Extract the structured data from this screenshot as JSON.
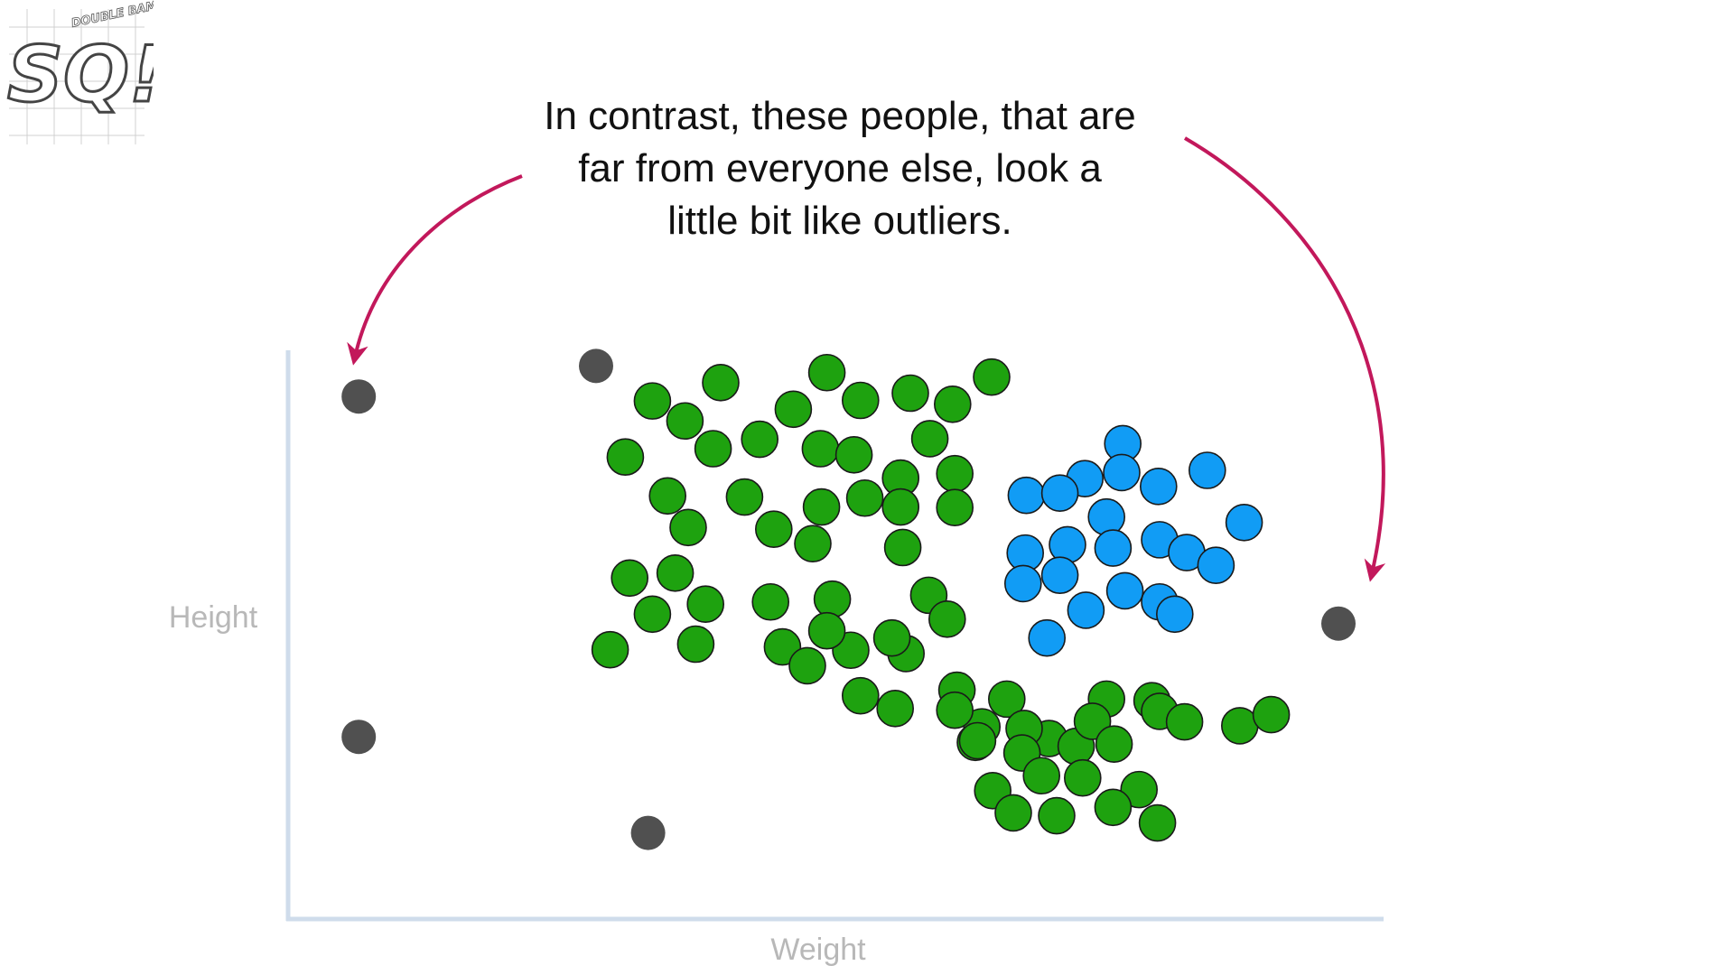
{
  "logo": {
    "letters": "SQ!",
    "tagline": "DOUBLE BAM!!!"
  },
  "caption": {
    "lines": [
      "In contrast, these people, that are",
      "far from everyone else, look a",
      "little bit like outliers."
    ]
  },
  "colors": {
    "axis": "#cfdceb",
    "axis_label": "#b8b8b8",
    "arrow": "#c2185b",
    "green": "#1ea20f",
    "blue": "#119cf5",
    "outlier": "#505050",
    "caption_text": "#111111"
  },
  "chart_data": {
    "type": "scatter",
    "xlabel": "Weight",
    "ylabel": "Height",
    "xlim": [
      0,
      100
    ],
    "ylim": [
      0,
      100
    ],
    "grid": false,
    "legend": "none",
    "annotation": "In contrast, these people, that are far from everyone else, look a little bit like outliers.",
    "series": [
      {
        "color": "green",
        "points": [
          [
            32.7,
            91.2
          ],
          [
            39.0,
            94.5
          ],
          [
            45.7,
            89.7
          ],
          [
            51.9,
            91.3
          ],
          [
            48.8,
            96.3
          ],
          [
            56.5,
            92.6
          ],
          [
            60.4,
            90.6
          ],
          [
            64.0,
            95.5
          ],
          [
            30.2,
            81.1
          ],
          [
            35.7,
            87.6
          ],
          [
            38.3,
            82.6
          ],
          [
            42.6,
            84.3
          ],
          [
            48.2,
            82.6
          ],
          [
            51.3,
            81.5
          ],
          [
            55.6,
            77.3
          ],
          [
            58.3,
            84.4
          ],
          [
            60.6,
            78.1
          ],
          [
            34.1,
            74.1
          ],
          [
            41.2,
            73.9
          ],
          [
            36.0,
            68.4
          ],
          [
            43.9,
            68.1
          ],
          [
            47.5,
            65.5
          ],
          [
            48.3,
            72.1
          ],
          [
            52.3,
            73.7
          ],
          [
            55.8,
            64.8
          ],
          [
            55.6,
            72.1
          ],
          [
            30.6,
            59.3
          ],
          [
            34.8,
            60.2
          ],
          [
            37.6,
            54.6
          ],
          [
            43.6,
            55.0
          ],
          [
            49.3,
            55.5
          ],
          [
            58.2,
            56.2
          ],
          [
            60.6,
            72.0
          ],
          [
            32.7,
            52.8
          ],
          [
            28.8,
            46.4
          ],
          [
            36.7,
            47.4
          ],
          [
            44.7,
            46.9
          ],
          [
            51.0,
            46.3
          ],
          [
            56.1,
            45.7
          ],
          [
            59.9,
            51.9
          ],
          [
            48.8,
            49.8
          ],
          [
            54.8,
            48.5
          ],
          [
            47.0,
            43.5
          ],
          [
            60.8,
            39.1
          ],
          [
            63.1,
            32.5
          ],
          [
            65.4,
            37.5
          ],
          [
            69.3,
            30.4
          ],
          [
            74.6,
            37.5
          ],
          [
            78.8,
            37.2
          ],
          [
            51.9,
            38.1
          ],
          [
            55.1,
            35.8
          ],
          [
            60.6,
            35.5
          ],
          [
            62.5,
            29.7
          ],
          [
            67.0,
            32.2
          ],
          [
            71.8,
            29.0
          ],
          [
            66.8,
            27.8
          ],
          [
            73.3,
            33.5
          ],
          [
            75.3,
            29.4
          ],
          [
            79.5,
            35.3
          ],
          [
            81.8,
            33.4
          ],
          [
            86.9,
            32.7
          ],
          [
            89.8,
            34.7
          ],
          [
            64.1,
            21.0
          ],
          [
            66.0,
            17.0
          ],
          [
            68.6,
            23.7
          ],
          [
            72.4,
            23.3
          ],
          [
            77.6,
            21.2
          ],
          [
            70.0,
            16.5
          ],
          [
            75.2,
            18.0
          ],
          [
            79.3,
            15.2
          ],
          [
            62.7,
            30.0
          ]
        ]
      },
      {
        "color": "blue",
        "points": [
          [
            76.1,
            83.5
          ],
          [
            72.6,
            77.2
          ],
          [
            76.0,
            78.3
          ],
          [
            79.4,
            75.8
          ],
          [
            83.9,
            78.7
          ],
          [
            67.2,
            74.2
          ],
          [
            70.3,
            74.6
          ],
          [
            74.6,
            70.3
          ],
          [
            79.5,
            66.2
          ],
          [
            67.1,
            63.8
          ],
          [
            71.0,
            65.3
          ],
          [
            75.2,
            64.7
          ],
          [
            82.0,
            63.9
          ],
          [
            66.9,
            58.3
          ],
          [
            70.3,
            59.8
          ],
          [
            76.3,
            57.0
          ],
          [
            79.5,
            55.0
          ],
          [
            87.3,
            69.3
          ],
          [
            84.7,
            61.6
          ],
          [
            80.9,
            52.8
          ],
          [
            72.7,
            53.5
          ],
          [
            69.1,
            48.5
          ]
        ]
      },
      {
        "color": "outlier",
        "points": [
          [
            5.6,
            92.0
          ],
          [
            27.5,
            97.5
          ],
          [
            96.0,
            51.1
          ],
          [
            5.6,
            30.7
          ],
          [
            32.3,
            13.4
          ]
        ]
      }
    ]
  }
}
